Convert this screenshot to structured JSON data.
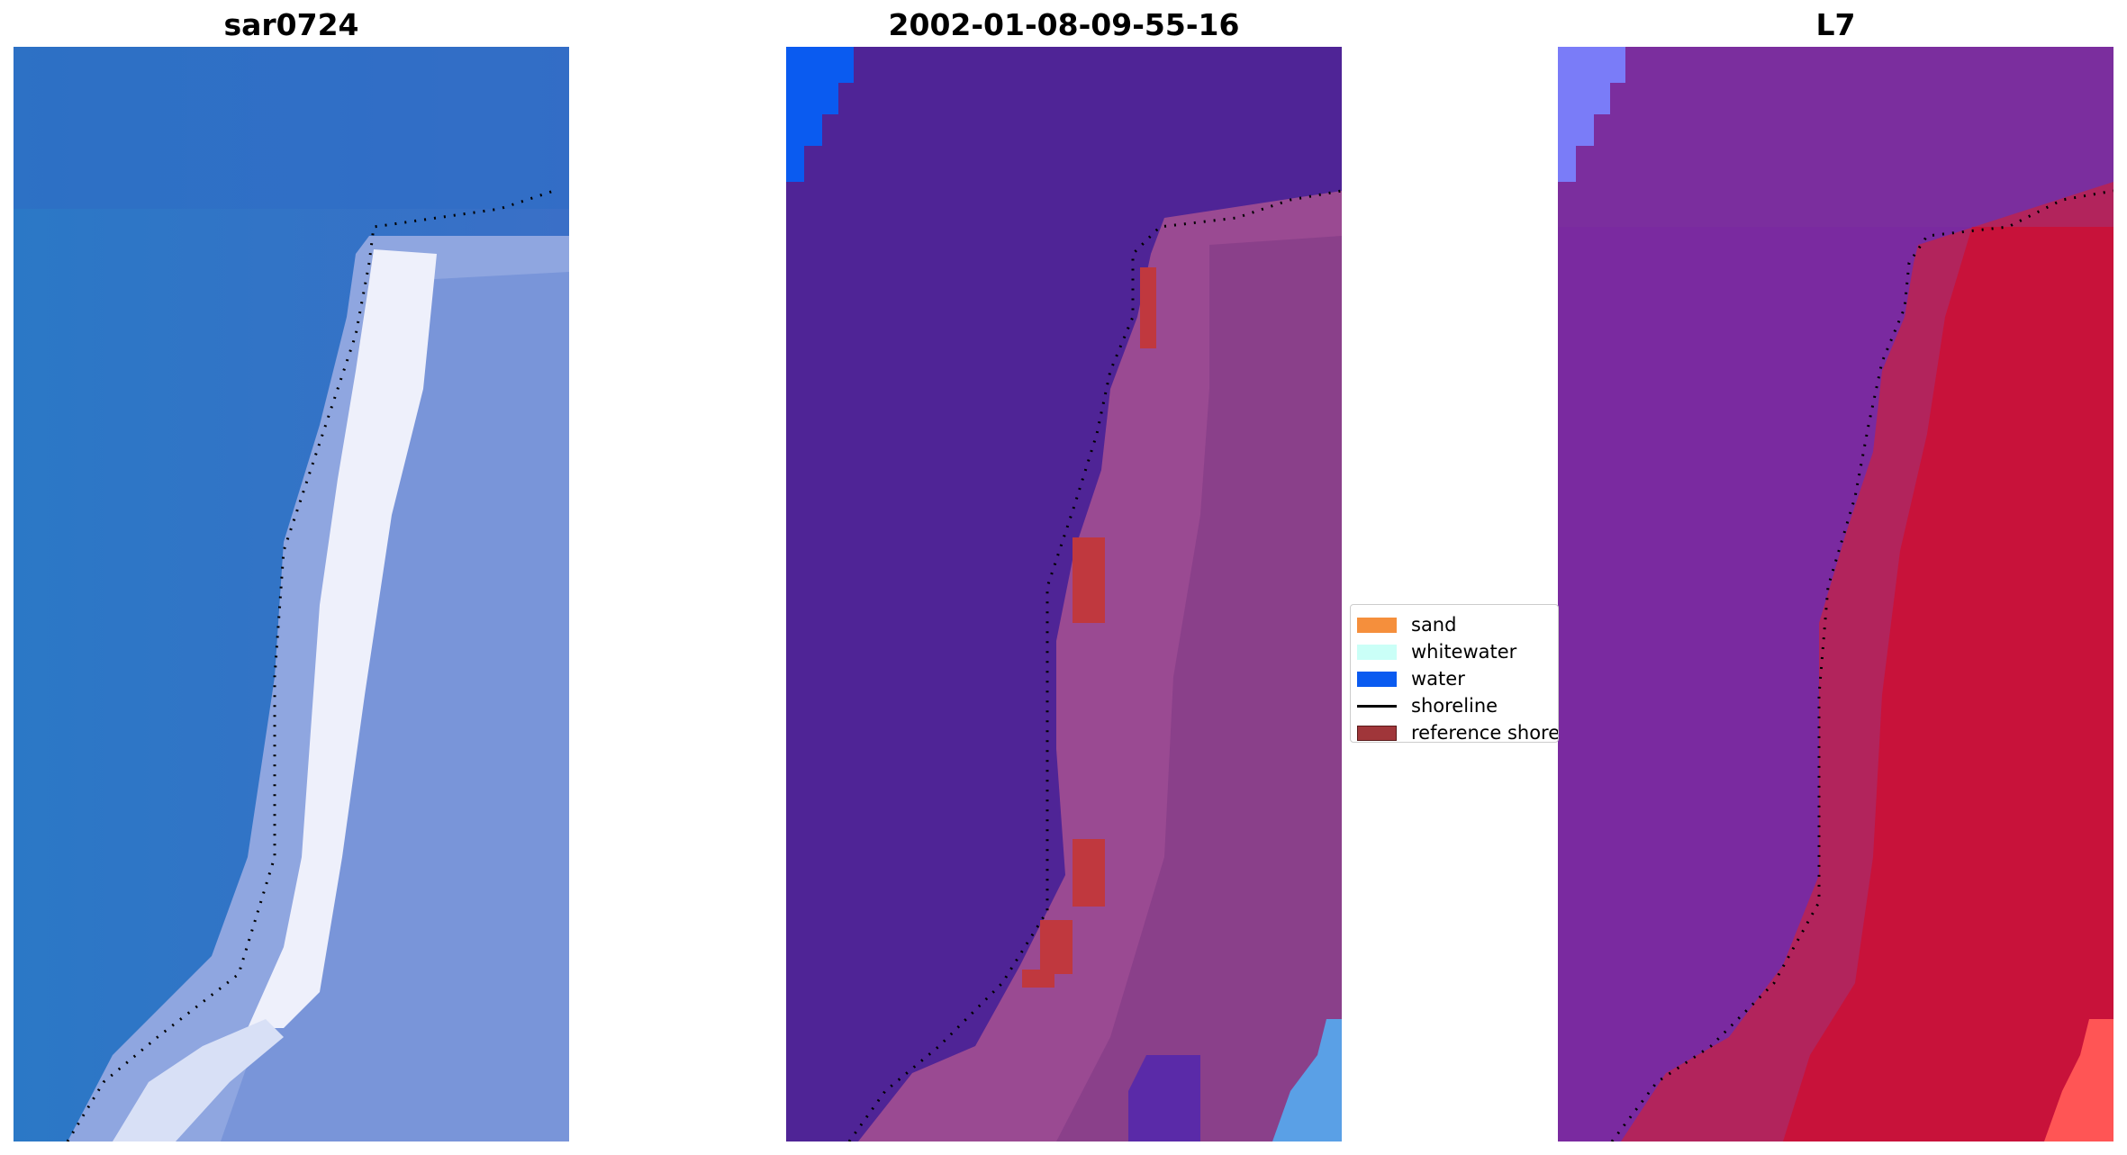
{
  "panels": [
    {
      "title": "sar0724"
    },
    {
      "title": "2002-01-08-09-55-16"
    },
    {
      "title": "L7"
    }
  ],
  "legend": {
    "items": [
      {
        "label": "sand",
        "color": "#f58f3c",
        "kind": "patch"
      },
      {
        "label": "whitewater",
        "color": "#cafff7",
        "kind": "patch"
      },
      {
        "label": "water",
        "color": "#0a5bf0",
        "kind": "patch"
      },
      {
        "label": "shoreline",
        "color": "#000000",
        "kind": "line"
      },
      {
        "label": "reference shoreline",
        "color": "#a0363a",
        "kind": "patch"
      }
    ]
  },
  "colors": {
    "rgb_water": "#2e73c8",
    "rgb_sand": "#e8eefc",
    "class_background": "#4f2496",
    "class_land": "#9a4a92",
    "class_reference": "#c0383e",
    "index_water": "#7a2aa0",
    "index_land": "#c8123a"
  }
}
